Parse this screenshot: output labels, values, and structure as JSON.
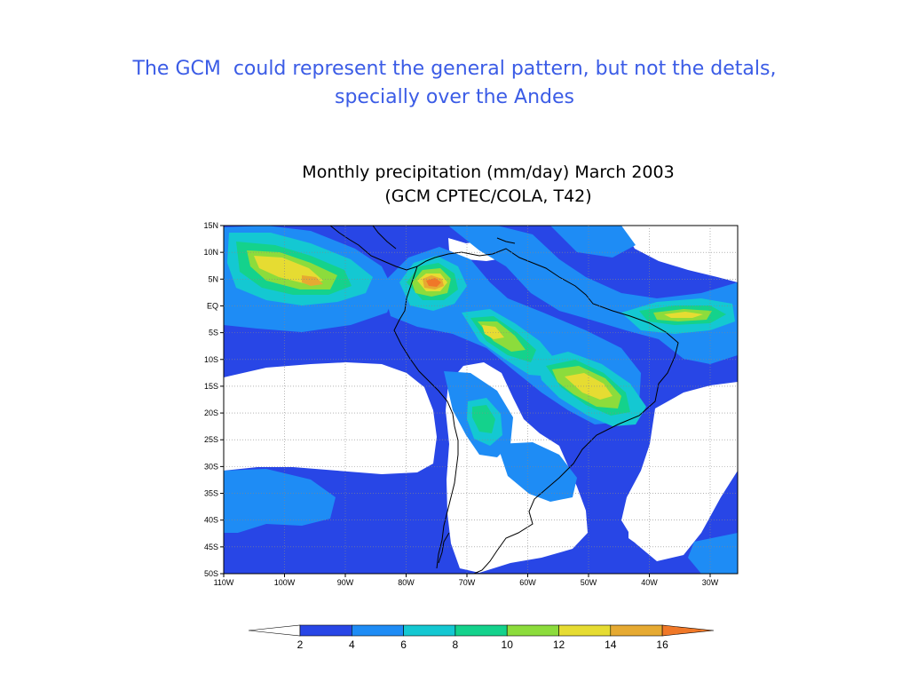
{
  "slide": {
    "title_line1": "The GCM  could represent the general pattern, but not the detals,",
    "title_line2": "specially over the Andes"
  },
  "map": {
    "title_line1": "Monthly precipitation (mm/day) March 2003",
    "title_line2": "(GCM CPTEC/COLA, T42)",
    "lat_labels": [
      "15N",
      "10N",
      "5N",
      "EQ",
      "5S",
      "10S",
      "15S",
      "20S",
      "25S",
      "30S",
      "35S",
      "40S",
      "45S",
      "50S"
    ],
    "lon_labels": [
      "110W",
      "100W",
      "90W",
      "80W",
      "70W",
      "60W",
      "50W",
      "40W",
      "30W"
    ]
  },
  "colorbar": {
    "ticks": [
      "2",
      "4",
      "6",
      "8",
      "10",
      "12",
      "14",
      "16"
    ],
    "colors": [
      "#ffffff",
      "#2846e6",
      "#1e8cf5",
      "#14c8d2",
      "#14d28c",
      "#8cdc3c",
      "#e6dc32",
      "#e6aa32",
      "#f07828"
    ]
  },
  "palette": {
    "title_color": "#3b5ce6",
    "coast_color": "#000000"
  }
}
